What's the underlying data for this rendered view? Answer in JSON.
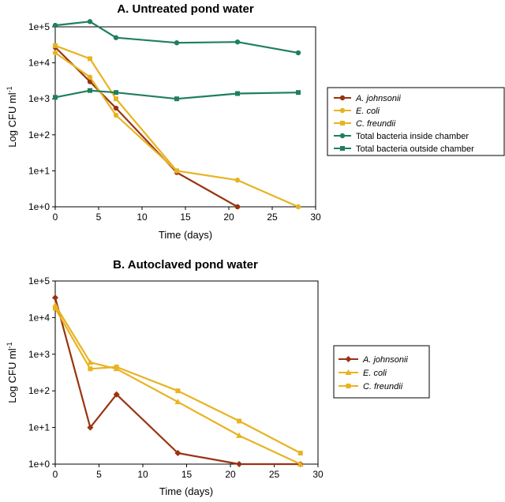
{
  "chart_data": [
    {
      "type": "line",
      "title": "A. Untreated pond water",
      "xlabel": "Time (days)",
      "ylabel": "Log CFU ml",
      "ylabel_sup": "-1",
      "xlim": [
        0,
        30
      ],
      "ylim": [
        1,
        100000
      ],
      "yscale": "log",
      "xticks": [
        "0",
        "5",
        "10",
        "15",
        "20",
        "25",
        "30"
      ],
      "yticks": [
        "1e+0",
        "1e+1",
        "1e+2",
        "1e+3",
        "1e+4",
        "1e+5"
      ],
      "grid": false,
      "legend_position": "right",
      "series": [
        {
          "name": "A. johnsonii",
          "italic": true,
          "color": "#993311",
          "marker": "circle",
          "x": [
            0,
            4,
            7,
            14,
            21
          ],
          "y": [
            27000,
            3000,
            550,
            9,
            1
          ]
        },
        {
          "name": "E. coli",
          "italic": true,
          "color": "#E8B322",
          "marker": "circle",
          "x": [
            0,
            4,
            7,
            14,
            21,
            28
          ],
          "y": [
            19000,
            4000,
            350,
            10,
            5.5,
            1
          ]
        },
        {
          "name": "C. freundii",
          "italic": true,
          "color": "#E8B322",
          "marker": "square",
          "x": [
            0,
            4,
            7,
            14
          ],
          "y": [
            30000,
            13000,
            1000,
            10
          ]
        },
        {
          "name": "Total bacteria inside chamber",
          "italic": false,
          "color": "#1F7F5F",
          "marker": "circle",
          "x": [
            0,
            4,
            7,
            14,
            21,
            28
          ],
          "y": [
            110000,
            140000,
            50000,
            36000,
            38000,
            19000
          ]
        },
        {
          "name": "Total bacteria outside chamber",
          "italic": false,
          "color": "#1F7F5F",
          "marker": "square",
          "x": [
            0,
            4,
            7,
            14,
            21,
            28
          ],
          "y": [
            1100,
            1700,
            1500,
            1000,
            1400,
            1500
          ]
        }
      ]
    },
    {
      "type": "line",
      "title": "B. Autoclaved pond water",
      "xlabel": "Time (days)",
      "ylabel": "Log CFU ml",
      "ylabel_sup": "-1",
      "xlim": [
        0,
        30
      ],
      "ylim": [
        1,
        100000
      ],
      "yscale": "log",
      "xticks": [
        "0",
        "5",
        "10",
        "15",
        "20",
        "25",
        "30"
      ],
      "yticks": [
        "1e+0",
        "1e+1",
        "1e+2",
        "1e+3",
        "1e+4",
        "1e+5"
      ],
      "grid": false,
      "legend_position": "right",
      "series": [
        {
          "name": "A. johnsonii",
          "italic": true,
          "color": "#993311",
          "marker": "diamond",
          "x": [
            0,
            4,
            7,
            14,
            21,
            28
          ],
          "y": [
            35000,
            10,
            80,
            2,
            1,
            1
          ]
        },
        {
          "name": "E. coli",
          "italic": true,
          "color": "#E8B322",
          "marker": "triangle",
          "x": [
            0,
            4,
            7,
            14,
            21,
            28
          ],
          "y": [
            22000,
            600,
            400,
            50,
            6,
            1
          ]
        },
        {
          "name": "C. freundii",
          "italic": true,
          "color": "#E8B322",
          "marker": "square",
          "x": [
            0,
            4,
            7,
            14,
            21,
            28
          ],
          "y": [
            18000,
            400,
            450,
            100,
            15,
            2
          ]
        }
      ]
    }
  ]
}
